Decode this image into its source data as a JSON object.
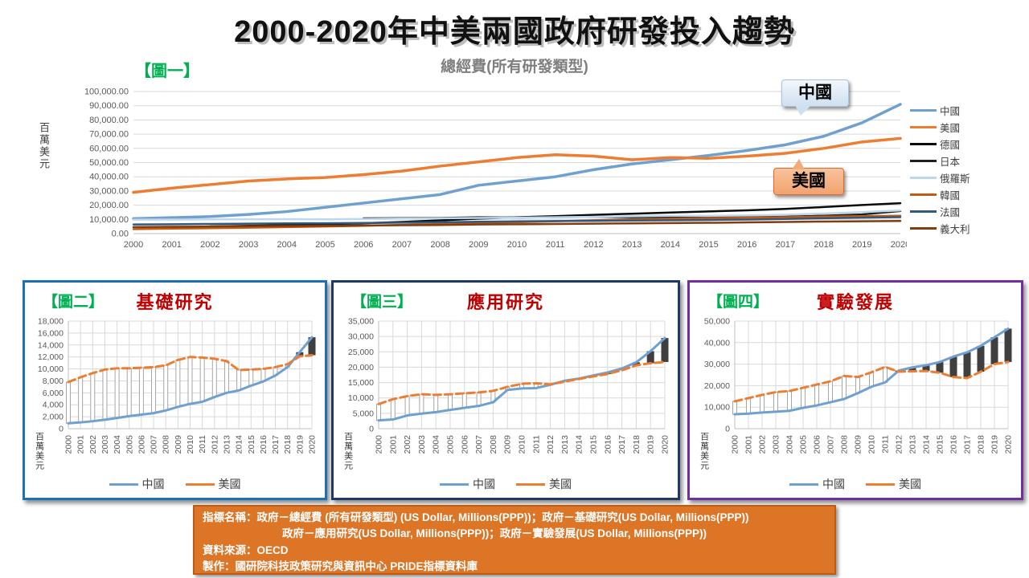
{
  "slide": {
    "title": "2000-2020年中美兩國政府研發投入趨勢"
  },
  "colors": {
    "green": "#00B050",
    "red": "#C00000",
    "panel2_border": "#1F6FB5",
    "panel3_border": "#1F3864",
    "panel4_border": "#7030A0",
    "footer_bg": "#DD7527",
    "footer_border": "#C05A11",
    "china_blue": "#6FA0D0",
    "us_orange": "#ED7D31",
    "gridline": "#D9D9D9",
    "axis_text": "#595959",
    "up_bar": "#3F3F3F",
    "down_bar_border": "#A6A6A6"
  },
  "chart_data": [
    {
      "id": "fig1",
      "type": "line",
      "panel_label": "【圖一】",
      "title": "總經費(所有研發類型)",
      "ylabel": "百萬美元",
      "ylim": [
        0,
        100000
      ],
      "ytick_step": 10000,
      "grid": "horizontal",
      "legend_position": "right",
      "x": [
        2000,
        2001,
        2002,
        2003,
        2004,
        2005,
        2006,
        2007,
        2008,
        2009,
        2010,
        2011,
        2012,
        2013,
        2014,
        2015,
        2016,
        2017,
        2018,
        2019,
        2020
      ],
      "series": [
        {
          "name": "中國",
          "color": "#6FA0D0",
          "width": 3.5,
          "dash": "",
          "values": [
            10500,
            11200,
            12000,
            13500,
            15500,
            18500,
            21500,
            24500,
            27500,
            34000,
            37000,
            40000,
            45000,
            49000,
            52000,
            55000,
            58500,
            62500,
            68500,
            78000,
            91000
          ]
        },
        {
          "name": "美國",
          "color": "#ED7D31",
          "width": 3.5,
          "dash": "",
          "values": [
            29000,
            32000,
            34500,
            37000,
            38500,
            39500,
            41500,
            44000,
            47500,
            50500,
            53500,
            55500,
            54500,
            52000,
            53500,
            53000,
            54500,
            56500,
            60000,
            64500,
            67000
          ]
        },
        {
          "name": "德國",
          "color": "#0A0A0A",
          "width": 2.5,
          "dash": "",
          "values": [
            null,
            null,
            5000,
            5500,
            6000,
            6600,
            7300,
            8200,
            9300,
            10500,
            11500,
            12300,
            13200,
            14000,
            14800,
            15600,
            16400,
            17400,
            18700,
            20100,
            21400
          ]
        },
        {
          "name": "日本",
          "color": "#1F1F1F",
          "width": 2.5,
          "dash": "",
          "values": [
            null,
            null,
            null,
            null,
            null,
            null,
            10700,
            10900,
            11000,
            11500,
            11300,
            11600,
            11800,
            11500,
            11700,
            11500,
            11600,
            11900,
            12600,
            13500,
            15900
          ]
        },
        {
          "name": "俄羅斯",
          "color": "#BDD7EE",
          "width": 2.5,
          "dash": "",
          "values": [
            9800,
            9900,
            10000,
            10100,
            10200,
            10000,
            10300,
            10600,
            10800,
            11000,
            11200,
            11500,
            11800,
            12200,
            12600,
            12500,
            12800,
            13300,
            14100,
            15100,
            16300
          ]
        },
        {
          "name": "韓國",
          "color": "#C55A11",
          "width": 2.5,
          "dash": "",
          "values": [
            3200,
            3500,
            3800,
            4200,
            4600,
            5000,
            5500,
            6100,
            6700,
            7300,
            8000,
            8700,
            9400,
            10000,
            10500,
            10900,
            11200,
            11600,
            12000,
            12300,
            12600
          ]
        },
        {
          "name": "法國",
          "color": "#31597F",
          "width": 2.5,
          "dash": "",
          "values": [
            6400,
            6600,
            6800,
            7000,
            7200,
            7300,
            7500,
            7700,
            8000,
            8300,
            8600,
            8800,
            9000,
            9200,
            9400,
            9600,
            9900,
            10300,
            10800,
            11200,
            11600
          ]
        },
        {
          "name": "義大利",
          "color": "#843C0C",
          "width": 2.5,
          "dash": "",
          "values": [
            4600,
            4800,
            5000,
            5200,
            5400,
            5500,
            5700,
            5900,
            6100,
            6400,
            6600,
            6800,
            7000,
            7200,
            7400,
            7600,
            7900,
            8200,
            8500,
            8700,
            8900
          ]
        }
      ],
      "annotations": [
        {
          "text": "中國"
        },
        {
          "text": "美國"
        }
      ]
    },
    {
      "id": "fig2",
      "type": "line",
      "panel_label": "【圖二】",
      "title": "基礎研究",
      "ylabel": "百萬美元",
      "ylim": [
        0,
        18000
      ],
      "ytick_step": 2000,
      "grid": "both",
      "legend_position": "bottom",
      "updown_bars": true,
      "x": [
        2000,
        2001,
        2002,
        2003,
        2004,
        2005,
        2006,
        2007,
        2008,
        2009,
        2010,
        2011,
        2012,
        2013,
        2014,
        2015,
        2016,
        2017,
        2018,
        2019,
        2020
      ],
      "series": [
        {
          "name": "中國",
          "color": "#6FA0D0",
          "width": 3,
          "dash": "",
          "values": [
            900,
            1050,
            1250,
            1500,
            1800,
            2100,
            2350,
            2600,
            3050,
            3650,
            4150,
            4500,
            5300,
            6000,
            6400,
            7200,
            7900,
            8900,
            10300,
            12800,
            15300
          ]
        },
        {
          "name": "美國",
          "color": "#ED7D31",
          "width": 3,
          "dash": "9 5",
          "values": [
            7800,
            8600,
            9300,
            9900,
            10100,
            10100,
            10200,
            10300,
            10600,
            11500,
            12000,
            11900,
            11700,
            11300,
            9800,
            9900,
            10000,
            10300,
            10800,
            12100,
            12300
          ]
        }
      ]
    },
    {
      "id": "fig3",
      "type": "line",
      "panel_label": "【圖三】",
      "title": "應用研究",
      "ylabel": "百萬美元",
      "ylim": [
        0,
        35000
      ],
      "ytick_step": 5000,
      "grid": "both",
      "legend_position": "bottom",
      "updown_bars": true,
      "x": [
        2000,
        2001,
        2002,
        2003,
        2004,
        2005,
        2006,
        2007,
        2008,
        2009,
        2010,
        2011,
        2012,
        2013,
        2014,
        2015,
        2016,
        2017,
        2018,
        2019,
        2020
      ],
      "series": [
        {
          "name": "中國",
          "color": "#6FA0D0",
          "width": 3,
          "dash": "",
          "values": [
            2700,
            3000,
            4300,
            4900,
            5400,
            6100,
            6800,
            7400,
            8600,
            12600,
            13100,
            13200,
            14300,
            15600,
            16300,
            17300,
            18300,
            19600,
            21600,
            25200,
            29500
          ]
        },
        {
          "name": "美國",
          "color": "#ED7D31",
          "width": 3,
          "dash": "9 5",
          "values": [
            8000,
            9600,
            10600,
            11200,
            11000,
            11200,
            11500,
            11800,
            12300,
            13600,
            14600,
            14800,
            14400,
            15300,
            16200,
            17000,
            17800,
            19000,
            20600,
            21300,
            21700
          ]
        }
      ]
    },
    {
      "id": "fig4",
      "type": "line",
      "panel_label": "【圖四】",
      "title": "實驗發展",
      "ylabel": "百萬美元",
      "ylim": [
        0,
        50000
      ],
      "ytick_step": 10000,
      "grid": "both",
      "legend_position": "bottom",
      "updown_bars": true,
      "x": [
        2000,
        2001,
        2002,
        2003,
        2004,
        2005,
        2006,
        2007,
        2008,
        2009,
        2010,
        2011,
        2012,
        2013,
        2014,
        2015,
        2016,
        2017,
        2018,
        2019,
        2020
      ],
      "series": [
        {
          "name": "中國",
          "color": "#6FA0D0",
          "width": 3,
          "dash": "",
          "values": [
            6700,
            7000,
            7500,
            7900,
            8300,
            9700,
            10800,
            12300,
            13800,
            16500,
            19500,
            21500,
            27000,
            28500,
            29500,
            31000,
            33500,
            35500,
            38500,
            42500,
            46500
          ]
        },
        {
          "name": "美國",
          "color": "#ED7D31",
          "width": 3,
          "dash": "9 5",
          "values": [
            12700,
            14200,
            15700,
            17000,
            17500,
            19000,
            20500,
            22000,
            24500,
            24000,
            26200,
            28700,
            26500,
            26700,
            26800,
            26000,
            24000,
            23500,
            26500,
            30000,
            31000
          ]
        }
      ]
    }
  ],
  "footer": {
    "lines": [
      "指標名稱：政府－總經費 (所有研發類型) (US Dollar, Millions(PPP))；政府－基礎研究(US Dollar, Millions(PPP))",
      "政府－應用研究(US Dollar, Millions(PPP))；政府－實驗發展(US Dollar, Millions(PPP))",
      "資料來源：OECD",
      "製作：國研院科技政策研究與資訊中心 PRIDE指標資料庫"
    ]
  }
}
